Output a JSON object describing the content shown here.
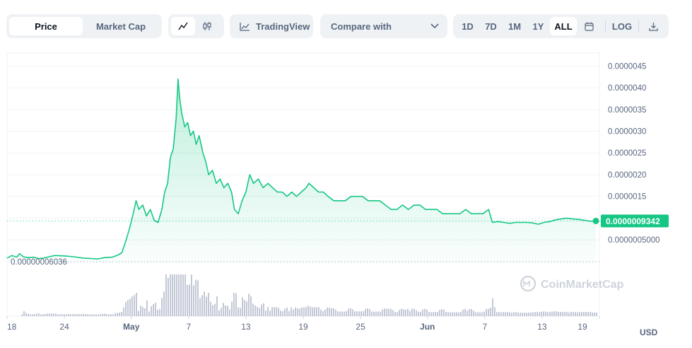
{
  "toolbar": {
    "view_tabs": [
      {
        "label": "Price",
        "active": true
      },
      {
        "label": "Market Cap",
        "active": false
      }
    ],
    "chart_type_icons": [
      "line-chart-icon",
      "candlestick-icon"
    ],
    "tradingview_label": "TradingView",
    "compare_label": "Compare with",
    "ranges": [
      {
        "label": "1D",
        "active": false
      },
      {
        "label": "7D",
        "active": false
      },
      {
        "label": "1M",
        "active": false
      },
      {
        "label": "1Y",
        "active": false
      },
      {
        "label": "ALL",
        "active": true
      }
    ],
    "log_label": "LOG"
  },
  "watermark": "CoinMarketCap",
  "currency_label": "USD",
  "colors": {
    "line": "#16c784",
    "toolbar_bg": "#eff2f5",
    "axis_text": "#58667e",
    "volume": "#c3c8d6"
  },
  "chart_data": {
    "type": "area",
    "x_ticks": [
      "18",
      "24",
      "May",
      "7",
      "13",
      "19",
      "25",
      "Jun",
      "7",
      "13",
      "19"
    ],
    "y_ticks": [
      "0.0000045",
      "0.0000040",
      "0.0000035",
      "0.0000030",
      "0.0000025",
      "0.0000020",
      "0.0000015",
      "0.0000010",
      "0.0000005000"
    ],
    "y_tick_values": [
      4.5e-06,
      4e-06,
      3.5e-06,
      3e-06,
      2.5e-06,
      2e-06,
      1.5e-06,
      1e-06,
      5e-07
    ],
    "ylim": [
      -2e-08,
      4.8e-06
    ],
    "current_price_label": "0.0000009342",
    "current_price": 9.342e-07,
    "min_price_label": "0.00000006036",
    "min_price": 6.036e-08,
    "x_day_range": [
      0,
      62
    ],
    "series": [
      {
        "name": "Price",
        "points": [
          [
            0,
            8e-08
          ],
          [
            0.5,
            1.4e-07
          ],
          [
            1,
            1e-07
          ],
          [
            1.3,
            1.8e-07
          ],
          [
            1.7,
            1.1e-07
          ],
          [
            2.2,
            9e-08
          ],
          [
            2.8,
            1e-07
          ],
          [
            3.3,
            7e-08
          ],
          [
            3.8,
            8e-08
          ],
          [
            4.2,
            1e-07
          ],
          [
            5,
            1.4e-07
          ],
          [
            6,
            1.3e-07
          ],
          [
            7,
            1.1e-07
          ],
          [
            8,
            8e-08
          ],
          [
            8.8,
            7e-08
          ],
          [
            9.5,
            6e-08
          ],
          [
            10.2,
            9e-08
          ],
          [
            11,
            1e-07
          ],
          [
            11.6,
            1.5e-07
          ],
          [
            12,
            2e-07
          ],
          [
            12.4,
            4.5e-07
          ],
          [
            12.8,
            7.5e-07
          ],
          [
            13.2,
            1.1e-06
          ],
          [
            13.5,
            1.4e-06
          ],
          [
            13.8,
            1.2e-06
          ],
          [
            14.2,
            1.3e-06
          ],
          [
            14.6,
            1.05e-06
          ],
          [
            15,
            1.2e-06
          ],
          [
            15.4,
            9.5e-07
          ],
          [
            15.8,
            9e-07
          ],
          [
            16.2,
            1.2e-06
          ],
          [
            16.5,
            1.6e-06
          ],
          [
            16.8,
            1.8e-06
          ],
          [
            17.1,
            2.4e-06
          ],
          [
            17.4,
            2.6e-06
          ],
          [
            17.7,
            3.3e-06
          ],
          [
            17.9,
            4.2e-06
          ],
          [
            18.1,
            3.7e-06
          ],
          [
            18.3,
            3.4e-06
          ],
          [
            18.6,
            3.1e-06
          ],
          [
            18.9,
            3.2e-06
          ],
          [
            19.2,
            2.9e-06
          ],
          [
            19.5,
            3e-06
          ],
          [
            19.8,
            2.7e-06
          ],
          [
            20.1,
            2.9e-06
          ],
          [
            20.5,
            2.5e-06
          ],
          [
            20.8,
            2.3e-06
          ],
          [
            21.1,
            2e-06
          ],
          [
            21.5,
            2.1e-06
          ],
          [
            21.9,
            1.8e-06
          ],
          [
            22.3,
            1.9e-06
          ],
          [
            22.7,
            1.7e-06
          ],
          [
            23.1,
            1.8e-06
          ],
          [
            23.5,
            1.6e-06
          ],
          [
            23.8,
            1.2e-06
          ],
          [
            24.2,
            1.1e-06
          ],
          [
            24.6,
            1.4e-06
          ],
          [
            25,
            1.6e-06
          ],
          [
            25.4,
            2e-06
          ],
          [
            25.8,
            1.8e-06
          ],
          [
            26.3,
            1.9e-06
          ],
          [
            26.8,
            1.7e-06
          ],
          [
            27.3,
            1.8e-06
          ],
          [
            27.8,
            1.7e-06
          ],
          [
            28.3,
            1.6e-06
          ],
          [
            28.8,
            1.6e-06
          ],
          [
            29.3,
            1.5e-06
          ],
          [
            29.8,
            1.6e-06
          ],
          [
            30.3,
            1.5e-06
          ],
          [
            30.8,
            1.6e-06
          ],
          [
            31.3,
            1.7e-06
          ],
          [
            31.6,
            1.8e-06
          ],
          [
            32.1,
            1.7e-06
          ],
          [
            32.6,
            1.6e-06
          ],
          [
            33.1,
            1.6e-06
          ],
          [
            33.6,
            1.5e-06
          ],
          [
            34.2,
            1.4e-06
          ],
          [
            34.8,
            1.4e-06
          ],
          [
            35.4,
            1.4e-06
          ],
          [
            36,
            1.5e-06
          ],
          [
            36.6,
            1.5e-06
          ],
          [
            37.2,
            1.5e-06
          ],
          [
            37.8,
            1.4e-06
          ],
          [
            38.4,
            1.4e-06
          ],
          [
            39,
            1.4e-06
          ],
          [
            39.6,
            1.3e-06
          ],
          [
            40.2,
            1.2e-06
          ],
          [
            40.8,
            1.2e-06
          ],
          [
            41.4,
            1.3e-06
          ],
          [
            42,
            1.2e-06
          ],
          [
            42.6,
            1.3e-06
          ],
          [
            43.2,
            1.3e-06
          ],
          [
            43.8,
            1.2e-06
          ],
          [
            44.4,
            1.2e-06
          ],
          [
            45,
            1.2e-06
          ],
          [
            45.6,
            1.1e-06
          ],
          [
            46.2,
            1.1e-06
          ],
          [
            46.8,
            1.1e-06
          ],
          [
            47.4,
            1.1e-06
          ],
          [
            48,
            1.2e-06
          ],
          [
            48.6,
            1.1e-06
          ],
          [
            49.2,
            1.1e-06
          ],
          [
            49.8,
            1.1e-06
          ],
          [
            50.4,
            1.2e-06
          ],
          [
            50.8,
            9e-07
          ],
          [
            51.4,
            9.2e-07
          ],
          [
            52,
            9e-07
          ],
          [
            52.6,
            8.8e-07
          ],
          [
            53.2,
            9e-07
          ],
          [
            53.8,
            9e-07
          ],
          [
            54.4,
            9e-07
          ],
          [
            55,
            8.9e-07
          ],
          [
            55.6,
            8.6e-07
          ],
          [
            56.2,
            9e-07
          ],
          [
            56.8,
            9.2e-07
          ],
          [
            57.4,
            9.6e-07
          ],
          [
            58,
            9.8e-07
          ],
          [
            58.6,
            1e-06
          ],
          [
            59.2,
            9.8e-07
          ],
          [
            59.8,
            9.7e-07
          ],
          [
            60.4,
            9.5e-07
          ],
          [
            61,
            9.3e-07
          ],
          [
            61.6,
            9.342e-07
          ]
        ]
      }
    ]
  }
}
